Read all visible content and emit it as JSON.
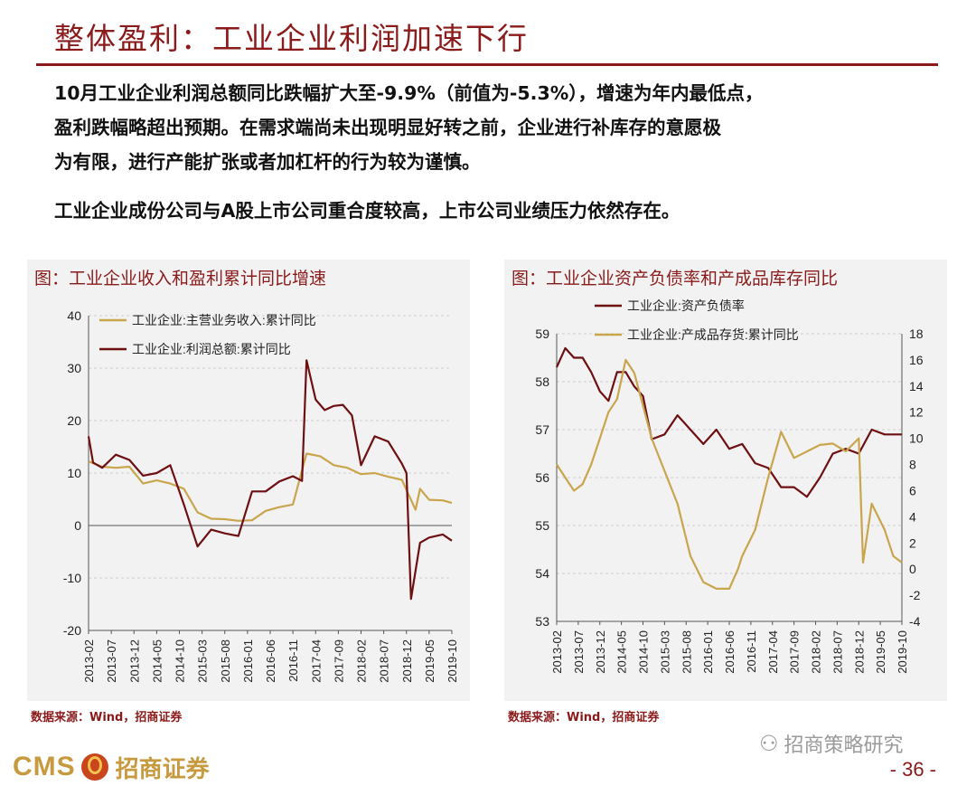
{
  "page": {
    "title": "整体盈利：工业企业利润加速下行",
    "para1_line1": "10月工业企业利润总额同比跌幅扩大至-9.9%（前值为-5.3%），增速为年内最低点，",
    "para1_line2": "盈利跌幅略超出预期。在需求端尚未出现明显好转之前，企业进行补库存的意愿极",
    "para1_line3": "为有限，进行产能扩张或者加杠杆的行为较为谨慎。",
    "para2": "工业企业成份公司与A股上市公司重合度较高，上市公司业绩压力依然存在。",
    "source_left": "数据来源：Wind，招商证券",
    "source_right": "数据来源：Wind，招商证券",
    "footer_brand_en": "CMS",
    "footer_brand_cn": "招商证券",
    "wechat_account": "招商策略研究",
    "page_number": "- 36 -"
  },
  "colors": {
    "accent": "#8b1a1a",
    "gold": "#c9a54d",
    "maroon": "#6e0f12",
    "panel_bg": "#f2f2f2",
    "grid": "#cfcfcf"
  },
  "chart_data": [
    {
      "type": "line",
      "title": "图：工业企业收入和盈利累计同比增速",
      "x_tick_labels": [
        "2013-02",
        "2013-07",
        "2013-12",
        "2014-05",
        "2014-10",
        "2015-03",
        "2015-08",
        "2016-01",
        "2016-06",
        "2016-11",
        "2017-04",
        "2017-09",
        "2018-02",
        "2018-07",
        "2018-12",
        "2019-05",
        "2019-10"
      ],
      "ylim": [
        -20,
        40
      ],
      "yticks": [
        -20,
        -10,
        0,
        10,
        20,
        30,
        40
      ],
      "grid": true,
      "legend_position": "top-left",
      "series": [
        {
          "name": "工业企业:主营业务收入:累计同比",
          "color": "#c9a54d",
          "x": [
            "2013-02",
            "2013-05",
            "2013-08",
            "2013-11",
            "2014-02",
            "2014-05",
            "2014-08",
            "2014-11",
            "2015-02",
            "2015-05",
            "2015-08",
            "2015-11",
            "2016-02",
            "2016-05",
            "2016-08",
            "2016-11",
            "2017-02",
            "2017-05",
            "2017-08",
            "2017-11",
            "2018-02",
            "2018-05",
            "2018-08",
            "2018-11",
            "2019-02",
            "2019-03",
            "2019-05",
            "2019-08",
            "2019-10"
          ],
          "values": [
            12.2,
            11.2,
            11.0,
            11.2,
            8.0,
            8.6,
            8.0,
            7.0,
            2.5,
            1.3,
            1.2,
            0.9,
            1.0,
            2.8,
            3.5,
            4.0,
            13.7,
            13.2,
            11.5,
            11.0,
            9.8,
            10.0,
            9.3,
            8.7,
            3.0,
            7.0,
            4.9,
            4.8,
            4.3
          ]
        },
        {
          "name": "工业企业:利润总额:累计同比",
          "color": "#6e0f12",
          "x": [
            "2013-02",
            "2013-03",
            "2013-05",
            "2013-08",
            "2013-11",
            "2014-02",
            "2014-05",
            "2014-08",
            "2014-11",
            "2015-02",
            "2015-05",
            "2015-08",
            "2015-11",
            "2016-02",
            "2016-05",
            "2016-08",
            "2016-11",
            "2017-01",
            "2017-02",
            "2017-04",
            "2017-06",
            "2017-08",
            "2017-10",
            "2017-12",
            "2018-02",
            "2018-05",
            "2018-08",
            "2018-11",
            "2018-12",
            "2019-01",
            "2019-03",
            "2019-05",
            "2019-08",
            "2019-10"
          ],
          "values": [
            17.0,
            12.0,
            11.0,
            13.5,
            12.5,
            9.5,
            10.0,
            11.5,
            4.0,
            -4.0,
            -0.8,
            -1.5,
            -2.0,
            6.5,
            6.5,
            8.4,
            9.4,
            8.5,
            31.5,
            24.0,
            22.0,
            22.8,
            23.0,
            21.0,
            11.5,
            17.0,
            16.0,
            11.8,
            10.0,
            -14.0,
            -3.3,
            -2.3,
            -1.7,
            -2.9
          ]
        }
      ]
    },
    {
      "type": "line",
      "title": "图：工业企业资产负债率和产成品库存同比",
      "x_tick_labels": [
        "2013-02",
        "2013-07",
        "2013-12",
        "2014-05",
        "2014-10",
        "2015-03",
        "2015-08",
        "2016-01",
        "2016-06",
        "2016-11",
        "2017-04",
        "2017-09",
        "2018-02",
        "2018-07",
        "2018-12",
        "2019-05",
        "2019-10"
      ],
      "ylim_left": [
        53,
        59
      ],
      "yticks_left": [
        53,
        54,
        55,
        56,
        57,
        58,
        59
      ],
      "ylim_right": [
        -4,
        18
      ],
      "yticks_right": [
        -4,
        -2,
        0,
        2,
        4,
        6,
        8,
        10,
        12,
        14,
        16,
        18
      ],
      "grid": true,
      "legend_position": "top",
      "series": [
        {
          "name": "工业企业:资产负债率",
          "color": "#6e0f12",
          "axis": "left",
          "x": [
            "2013-02",
            "2013-04",
            "2013-06",
            "2013-08",
            "2013-10",
            "2013-12",
            "2014-02",
            "2014-04",
            "2014-06",
            "2014-08",
            "2014-10",
            "2014-12",
            "2015-03",
            "2015-06",
            "2015-09",
            "2015-12",
            "2016-03",
            "2016-06",
            "2016-09",
            "2016-12",
            "2017-03",
            "2017-06",
            "2017-09",
            "2017-12",
            "2018-03",
            "2018-06",
            "2018-09",
            "2018-12",
            "2019-03",
            "2019-06",
            "2019-10"
          ],
          "values": [
            58.3,
            58.7,
            58.5,
            58.5,
            58.2,
            57.8,
            57.6,
            58.2,
            58.2,
            57.9,
            57.7,
            56.8,
            56.9,
            57.3,
            57.0,
            56.7,
            57.0,
            56.6,
            56.7,
            56.3,
            56.2,
            55.8,
            55.8,
            55.6,
            56.0,
            56.5,
            56.6,
            56.5,
            57.0,
            56.9,
            56.9
          ]
        },
        {
          "name": "工业企业:产成品存货:累计同比",
          "color": "#c9a54d",
          "axis": "right",
          "x": [
            "2013-02",
            "2013-04",
            "2013-06",
            "2013-08",
            "2013-10",
            "2013-12",
            "2014-02",
            "2014-04",
            "2014-06",
            "2014-08",
            "2014-10",
            "2014-12",
            "2015-03",
            "2015-06",
            "2015-09",
            "2015-12",
            "2016-03",
            "2016-06",
            "2016-08",
            "2016-09",
            "2016-12",
            "2017-03",
            "2017-06",
            "2017-09",
            "2017-12",
            "2018-03",
            "2018-06",
            "2018-09",
            "2018-12",
            "2019-01",
            "2019-03",
            "2019-06",
            "2019-08",
            "2019-10"
          ],
          "values": [
            8.0,
            7.0,
            6.0,
            6.5,
            8.0,
            10.0,
            12.0,
            13.0,
            16.0,
            15.0,
            12.5,
            10.0,
            7.5,
            5.0,
            1.0,
            -1.0,
            -1.5,
            -1.5,
            0.0,
            1.0,
            3.0,
            7.0,
            10.5,
            8.5,
            9.0,
            9.5,
            9.6,
            9.0,
            10.0,
            0.5,
            5.0,
            3.0,
            1.0,
            0.5
          ]
        }
      ]
    }
  ]
}
